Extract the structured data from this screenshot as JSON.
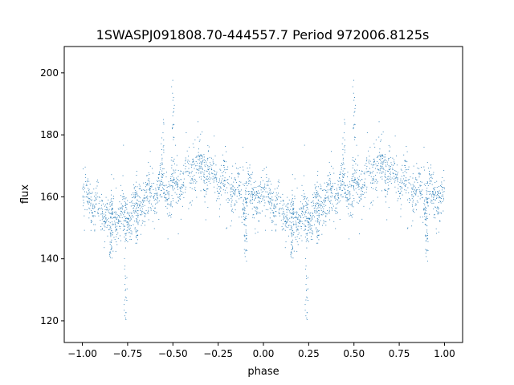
{
  "chart_data": {
    "type": "scatter",
    "title": "1SWASPJ091808.70-444557.7 Period 972006.8125s",
    "xlabel": "phase",
    "ylabel": "flux",
    "xlim": [
      -1.1,
      1.1
    ],
    "ylim": [
      113.0,
      208.5
    ],
    "xticks": [
      -1.0,
      -0.75,
      -0.5,
      -0.25,
      0.0,
      0.25,
      0.5,
      0.75,
      1.0
    ],
    "xtick_labels": [
      "−1.00",
      "−0.75",
      "−0.50",
      "−0.25",
      "0.00",
      "0.25",
      "0.50",
      "0.75",
      "1.00"
    ],
    "yticks": [
      120,
      140,
      160,
      180,
      200
    ],
    "ytick_labels": [
      "120",
      "140",
      "160",
      "180",
      "200"
    ],
    "grid": false,
    "legend": "none",
    "point_color": "#1f77b4",
    "trend": {
      "phase": [
        0.0,
        0.05,
        0.1,
        0.15,
        0.2,
        0.25,
        0.3,
        0.35,
        0.4,
        0.45,
        0.5,
        0.55,
        0.6,
        0.65,
        0.7,
        0.75,
        0.8,
        0.85,
        0.9,
        0.95,
        1.0
      ],
      "flux": [
        160,
        158,
        156,
        155,
        154,
        153,
        158,
        160,
        161,
        162,
        163,
        165,
        168,
        170,
        168,
        165,
        163,
        161,
        160,
        160,
        160
      ]
    },
    "scatter_spread": 4.0,
    "points_per_cycle": 1400,
    "dips": [
      {
        "phase": 0.24,
        "min_flux": 118
      },
      {
        "phase": 0.16,
        "min_flux": 140
      },
      {
        "phase": 0.3,
        "min_flux": 145
      },
      {
        "phase": 0.9,
        "min_flux": 138
      }
    ],
    "spikes": [
      {
        "phase": 0.5,
        "max_flux": 200
      },
      {
        "phase": 0.44,
        "max_flux": 185
      }
    ]
  }
}
